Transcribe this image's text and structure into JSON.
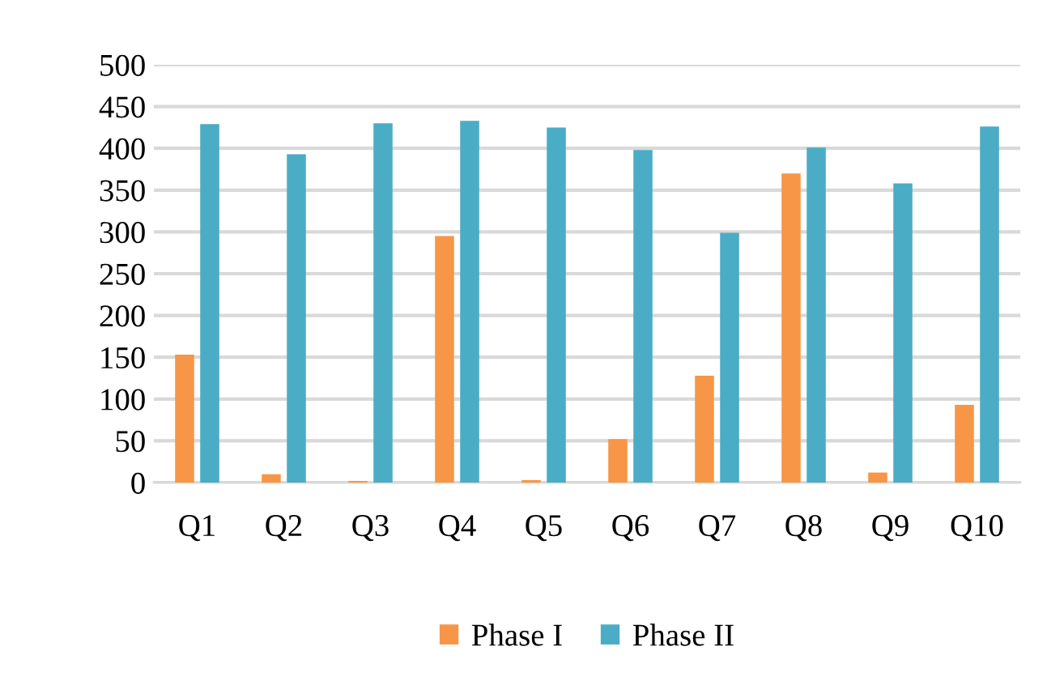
{
  "chart_data": {
    "type": "bar",
    "categories": [
      "Q1",
      "Q2",
      "Q3",
      "Q4",
      "Q5",
      "Q6",
      "Q7",
      "Q8",
      "Q9",
      "Q10"
    ],
    "series": [
      {
        "name": "Phase I",
        "color": "#f79646",
        "values": [
          153,
          10,
          2,
          295,
          3,
          52,
          128,
          370,
          12,
          93
        ]
      },
      {
        "name": "Phase II",
        "color": "#4bacc6",
        "values": [
          429,
          393,
          430,
          433,
          425,
          398,
          299,
          401,
          358,
          426
        ]
      }
    ],
    "ylim": [
      0,
      500
    ],
    "yticks": [
      0,
      50,
      100,
      150,
      200,
      250,
      300,
      350,
      400,
      450,
      500
    ],
    "grid": "y",
    "legend": "bottom"
  }
}
